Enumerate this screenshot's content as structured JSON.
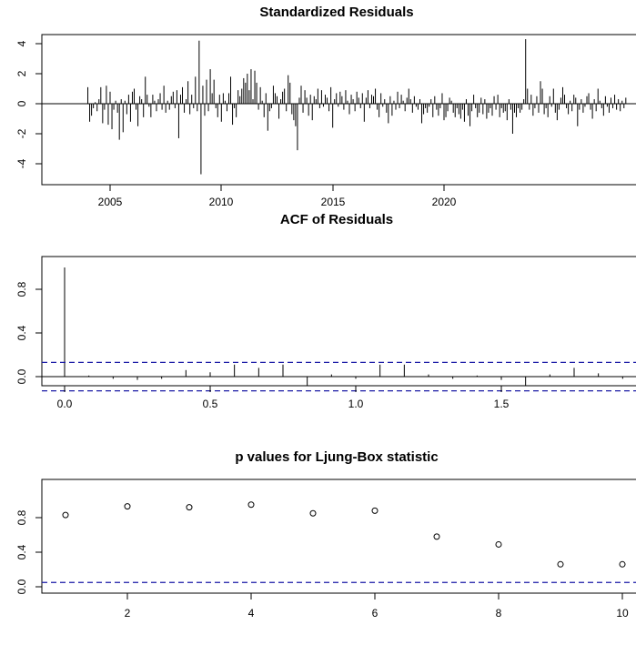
{
  "chart_data": [
    {
      "type": "bar",
      "title": "Standardized Residuals",
      "xlabel": "",
      "ylabel": "",
      "xlim": [
        2003.4,
        2024.8
      ],
      "ylim": [
        -5,
        4.8
      ],
      "x_ticks": [
        "2005",
        "2010",
        "2015",
        "2020"
      ],
      "y_ticks": [
        "-4",
        "-2",
        "0",
        "2",
        "4"
      ],
      "x_start": 2004.0,
      "x_step": 0.0833333,
      "values": [
        1.1,
        -1.2,
        -0.8,
        -0.3,
        0.1,
        -0.5,
        0.3,
        1.1,
        -1.3,
        -0.4,
        1.2,
        -1.4,
        0.8,
        -1.7,
        -0.4,
        0.2,
        -0.6,
        -2.4,
        0.3,
        -1.9,
        0.2,
        -0.7,
        0.6,
        -1.2,
        0.8,
        1.0,
        -0.4,
        -1.5,
        0.5,
        0.3,
        -0.9,
        1.8,
        0.6,
        -0.2,
        -0.9,
        0.6,
        0.2,
        -0.5,
        0.3,
        0.7,
        -0.4,
        1.2,
        -0.6,
        0.2,
        -0.4,
        0.5,
        0.8,
        -0.3,
        0.9,
        -2.3,
        0.6,
        1.1,
        -0.6,
        0.3,
        1.5,
        -0.7,
        0.6,
        -0.3,
        1.8,
        -0.5,
        4.2,
        -4.7,
        1.2,
        -0.8,
        1.6,
        -0.5,
        2.3,
        0.7,
        1.6,
        -0.3,
        -0.9,
        0.6,
        -1.2,
        0.7,
        0.2,
        -0.5,
        0.7,
        1.8,
        -1.4,
        -0.3,
        -0.9,
        0.9,
        0.5,
        1.0,
        1.7,
        1.4,
        2.0,
        0.9,
        2.3,
        0.3,
        2.2,
        1.4,
        -0.4,
        1.1,
        0.2,
        -0.9,
        0.7,
        -1.8,
        -0.5,
        -0.3,
        1.2,
        0.7,
        0.5,
        -1.0,
        0.3,
        0.8,
        1.0,
        -0.5,
        1.9,
        1.4,
        -0.7,
        -1.1,
        -1.5,
        -3.1,
        0.4,
        1.2,
        -0.6,
        0.9,
        0.4,
        -0.8,
        0.6,
        -1.1,
        0.5,
        0.3,
        1.0,
        -0.3,
        0.9,
        -0.2,
        0.6,
        0.4,
        -0.5,
        1.1,
        -1.6,
        0.3,
        0.7,
        -0.2,
        0.8,
        0.5,
        -0.4,
        0.9,
        0.2,
        -0.7,
        0.6,
        0.3,
        -0.5,
        0.8,
        0.4,
        -0.3,
        0.7,
        -1.2,
        0.4,
        0.9,
        -0.3,
        0.6,
        0.5,
        1.0,
        -0.4,
        -0.9,
        0.7,
        -0.2,
        0.3,
        -0.6,
        -1.3,
        0.5,
        -0.8,
        0.2,
        -0.4,
        0.8,
        -0.3,
        0.6,
        0.2,
        -0.5,
        0.4,
        1.0,
        0.3,
        -0.6,
        0.5,
        -0.2,
        -0.4,
        0.3,
        -1.3,
        -0.7,
        -0.3,
        -0.6,
        -0.2,
        0.3,
        -0.9,
        0.5,
        -0.4,
        -0.8,
        -0.3,
        0.7,
        -1.1,
        -0.9,
        -0.5,
        0.4,
        0.2,
        -0.6,
        -0.9,
        -0.3,
        -0.7,
        -1.0,
        -0.4,
        -1.2,
        0.3,
        -0.8,
        -1.5,
        -0.5,
        0.6,
        -0.3,
        -0.9,
        -0.6,
        0.4,
        -0.7,
        0.3,
        -1.0,
        -0.6,
        -0.3,
        -0.8,
        0.5,
        -0.4,
        0.6,
        -0.9,
        -0.3,
        -0.6,
        -0.5,
        -1.1,
        0.3,
        -0.4,
        -2.0,
        -0.6,
        -0.9,
        -0.3,
        -0.6,
        -0.4,
        0.3,
        4.3,
        1.0,
        -0.4,
        0.6,
        -0.8,
        -0.3,
        0.5,
        -0.6,
        1.5,
        1.0,
        -0.7,
        -0.3,
        -0.9,
        0.5,
        -0.2,
        1.0,
        -0.6,
        -1.1,
        -0.4,
        0.4,
        1.1,
        0.6,
        -0.3,
        -0.7,
        0.2,
        -0.5,
        0.6,
        0.4,
        -1.5,
        -0.4,
        0.3,
        -0.6,
        -0.2,
        0.5,
        0.7,
        -0.4,
        -1.0,
        0.3,
        -0.5,
        1.0,
        0.2,
        -0.3,
        -0.8,
        0.5,
        -0.2,
        -0.6,
        0.4,
        -0.3,
        0.6,
        -0.4,
        0.3,
        -0.5,
        0.2,
        -0.3,
        0.4
      ]
    },
    {
      "type": "bar",
      "title": "ACF of Residuals",
      "xlabel": "",
      "ylabel": "",
      "xlim": [
        -0.08,
        1.97
      ],
      "ylim": [
        -0.13,
        1.02
      ],
      "x_ticks": [
        "0.0",
        "0.5",
        "1.0",
        "1.5"
      ],
      "y_ticks": [
        "0.0",
        "0.4",
        "0.8"
      ],
      "x": [
        0.0,
        0.0833,
        0.1667,
        0.25,
        0.3333,
        0.4167,
        0.5,
        0.5833,
        0.6667,
        0.75,
        0.8333,
        0.9167,
        1.0,
        1.0833,
        1.1667,
        1.25,
        1.3333,
        1.4167,
        1.5,
        1.5833,
        1.6667,
        1.75,
        1.8333,
        1.9167
      ],
      "values": [
        1.0,
        0.01,
        -0.02,
        -0.03,
        -0.02,
        0.06,
        0.04,
        0.11,
        0.08,
        0.11,
        -0.08,
        0.02,
        -0.02,
        0.11,
        0.11,
        0.02,
        -0.02,
        0.01,
        -0.03,
        -0.08,
        0.02,
        0.08,
        0.03,
        -0.02
      ],
      "confidence_band": [
        0.13,
        -0.13
      ]
    },
    {
      "type": "scatter",
      "title": "p values for Ljung-Box statistic",
      "xlabel": "",
      "ylabel": "",
      "xlim": [
        0.6,
        10.2
      ],
      "ylim": [
        -0.03,
        1.0
      ],
      "x_ticks": [
        "2",
        "4",
        "6",
        "8",
        "10"
      ],
      "y_ticks": [
        "0.0",
        "0.4",
        "0.8"
      ],
      "x": [
        1,
        2,
        3,
        4,
        5,
        6,
        7,
        8,
        9,
        10
      ],
      "y": [
        0.83,
        0.93,
        0.92,
        0.95,
        0.85,
        0.88,
        0.58,
        0.49,
        0.26,
        0.26
      ],
      "reference_line": 0.05
    }
  ]
}
